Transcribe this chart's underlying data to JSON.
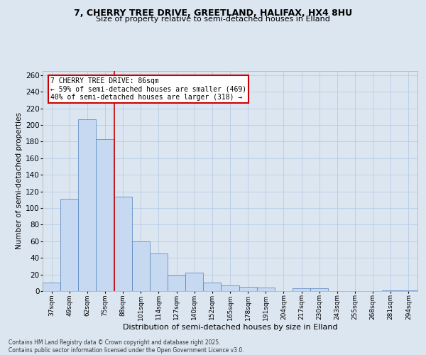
{
  "title_line1": "7, CHERRY TREE DRIVE, GREETLAND, HALIFAX, HX4 8HU",
  "title_line2": "Size of property relative to semi-detached houses in Elland",
  "xlabel": "Distribution of semi-detached houses by size in Elland",
  "ylabel": "Number of semi-detached properties",
  "categories": [
    "37sqm",
    "49sqm",
    "62sqm",
    "75sqm",
    "88sqm",
    "101sqm",
    "114sqm",
    "127sqm",
    "140sqm",
    "152sqm",
    "165sqm",
    "178sqm",
    "191sqm",
    "204sqm",
    "217sqm",
    "230sqm",
    "243sqm",
    "255sqm",
    "268sqm",
    "281sqm",
    "294sqm"
  ],
  "values": [
    10,
    111,
    207,
    183,
    114,
    60,
    45,
    19,
    22,
    10,
    7,
    5,
    4,
    0,
    3,
    3,
    0,
    0,
    0,
    1,
    1
  ],
  "bar_color": "#c6d9f0",
  "bar_edge_color": "#4f81bd",
  "red_line_x": 3.5,
  "annotation_title": "7 CHERRY TREE DRIVE: 86sqm",
  "annotation_line1": "← 59% of semi-detached houses are smaller (469)",
  "annotation_line2": "40% of semi-detached houses are larger (318) →",
  "annotation_box_color": "#ffffff",
  "annotation_box_edge_color": "#cc0000",
  "red_line_color": "#cc0000",
  "ylim": [
    0,
    265
  ],
  "yticks": [
    0,
    20,
    40,
    60,
    80,
    100,
    120,
    140,
    160,
    180,
    200,
    220,
    240,
    260
  ],
  "footer_line1": "Contains HM Land Registry data © Crown copyright and database right 2025.",
  "footer_line2": "Contains public sector information licensed under the Open Government Licence v3.0.",
  "grid_color": "#b8cce4",
  "background_color": "#dce6f1"
}
